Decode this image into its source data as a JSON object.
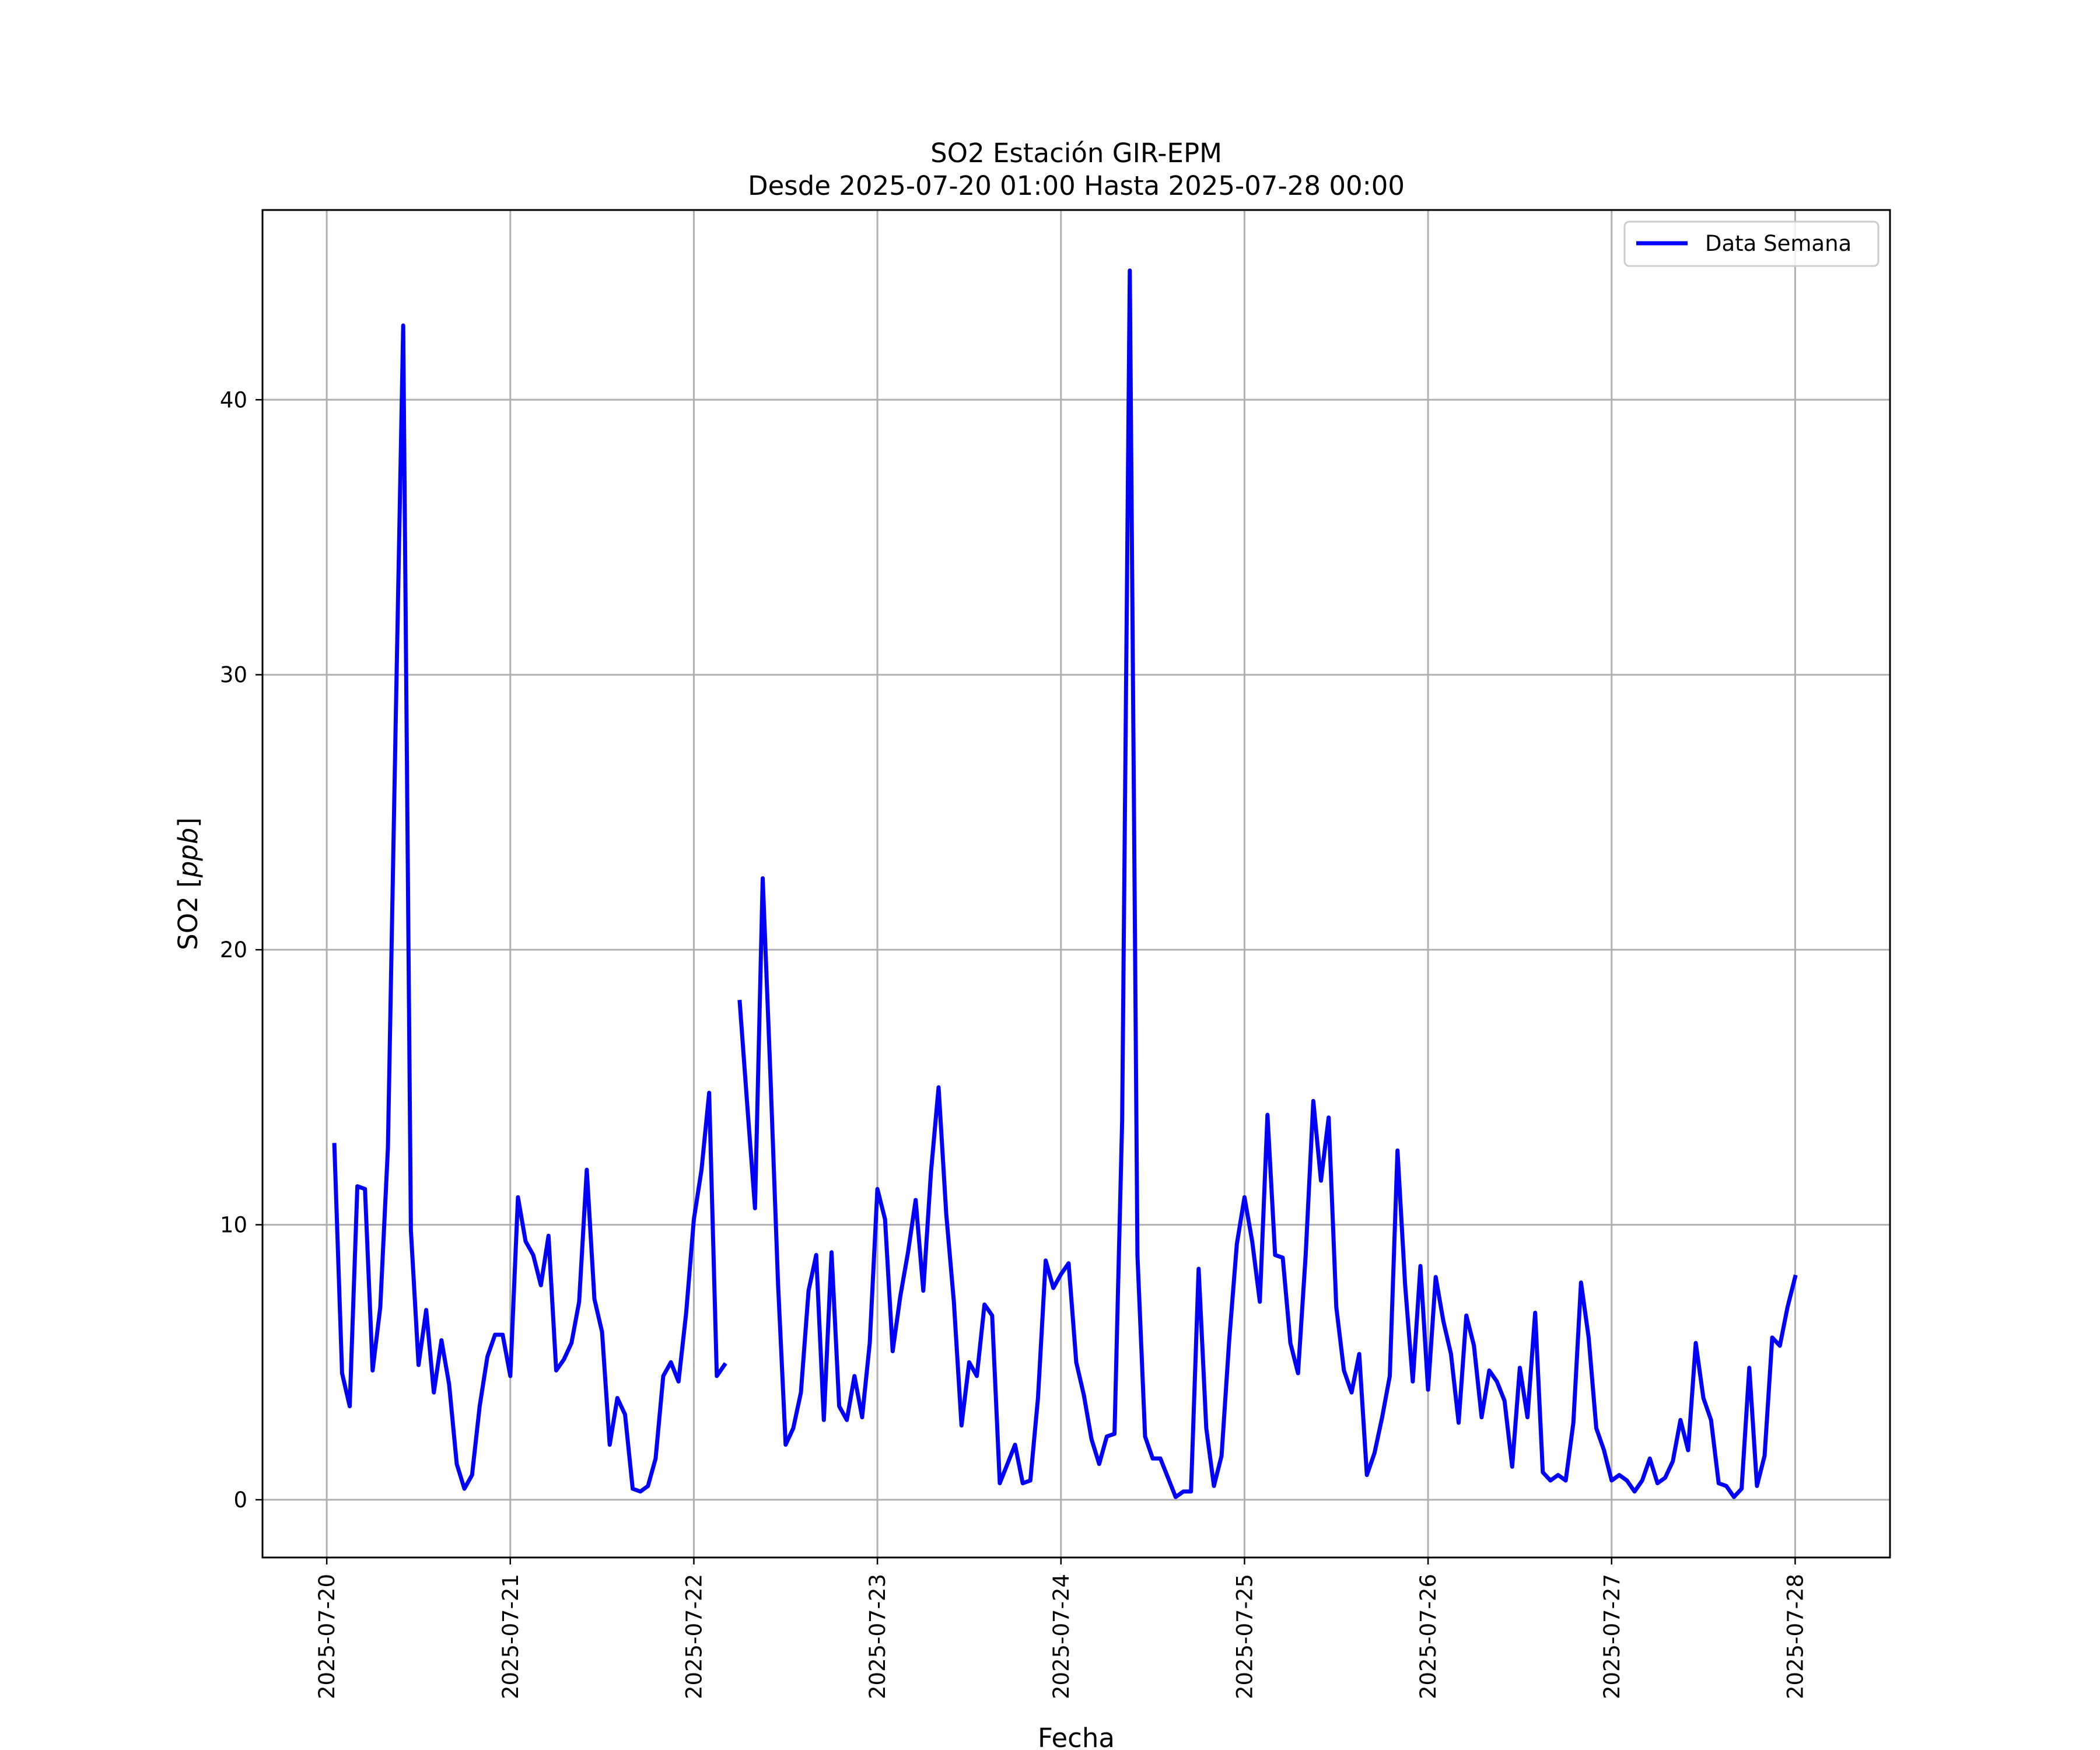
{
  "chart_data": {
    "type": "line",
    "title": "SO2 Estación GIR-EPM",
    "subtitle": "Desde 2025-07-20 01:00 Hasta 2025-07-28 00:00",
    "xlabel": "Fecha",
    "ylabel_main": "SO2 [",
    "ylabel_unit": "ppb",
    "ylabel_close": "]",
    "xlim": [
      "2025-07-19T15:36",
      "2025-07-28T12:24"
    ],
    "ylim": [
      -2.1,
      46.9
    ],
    "x_tick_labels": [
      "2025-07-20",
      "2025-07-21",
      "2025-07-22",
      "2025-07-23",
      "2025-07-24",
      "2025-07-25",
      "2025-07-26",
      "2025-07-27",
      "2025-07-28"
    ],
    "y_tick_labels": [
      "0",
      "10",
      "20",
      "30",
      "40"
    ],
    "y_tick_values": [
      0,
      10,
      20,
      30,
      40
    ],
    "grid": true,
    "legend_position": "top-right",
    "color": "#0000ff",
    "series": [
      {
        "name": "Data Semana",
        "start": "2025-07-20T01:00",
        "interval_hours": 1,
        "values": [
          12.9,
          4.6,
          3.4,
          11.4,
          11.3,
          4.7,
          7.0,
          12.8,
          28.0,
          42.7,
          9.8,
          4.9,
          6.9,
          3.9,
          5.8,
          4.2,
          1.3,
          0.4,
          0.9,
          3.4,
          5.2,
          6.0,
          6.0,
          4.5,
          11.0,
          9.4,
          8.9,
          7.8,
          9.6,
          4.7,
          5.1,
          5.7,
          7.2,
          12.0,
          7.3,
          6.1,
          2.0,
          3.7,
          3.1,
          0.4,
          0.3,
          0.5,
          1.5,
          4.5,
          5.0,
          4.3,
          6.8,
          10.2,
          12.0,
          14.8,
          4.5,
          4.9,
          null,
          18.1,
          14.3,
          10.6,
          22.6,
          15.5,
          7.9,
          2.0,
          2.6,
          3.9,
          7.6,
          8.9,
          2.9,
          9.0,
          3.4,
          2.9,
          4.5,
          3.0,
          5.7,
          11.3,
          10.2,
          5.4,
          7.4,
          9.0,
          10.9,
          7.6,
          11.9,
          15.0,
          10.4,
          7.2,
          2.7,
          5.0,
          4.5,
          7.1,
          6.7,
          0.6,
          1.3,
          2.0,
          0.6,
          0.7,
          3.7,
          8.7,
          7.7,
          8.2,
          8.6,
          5.0,
          3.8,
          2.2,
          1.3,
          2.3,
          2.4,
          13.8,
          44.7,
          8.9,
          2.3,
          1.5,
          1.5,
          0.8,
          0.1,
          0.3,
          0.3,
          8.4,
          2.6,
          0.5,
          1.6,
          5.8,
          9.3,
          11.0,
          9.4,
          7.2,
          14.0,
          8.9,
          8.8,
          5.7,
          4.6,
          8.9,
          14.5,
          11.6,
          13.9,
          7.0,
          4.7,
          3.9,
          5.3,
          0.9,
          1.7,
          3.0,
          4.5,
          12.7,
          7.8,
          4.3,
          8.5,
          4.0,
          8.1,
          6.5,
          5.3,
          2.8,
          6.7,
          5.6,
          3.0,
          4.7,
          4.3,
          3.6,
          1.2,
          4.8,
          3.0,
          6.8,
          1.0,
          0.7,
          0.9,
          0.7,
          2.8,
          7.9,
          5.9,
          2.6,
          1.8,
          0.7,
          0.9,
          0.7,
          0.3,
          0.7,
          1.5,
          0.6,
          0.8,
          1.4,
          2.9,
          1.8,
          5.7,
          3.7,
          2.9,
          0.6,
          0.5,
          0.1,
          0.4,
          4.8,
          0.5,
          1.6,
          5.9,
          5.6,
          7.0,
          8.1
        ]
      }
    ]
  }
}
